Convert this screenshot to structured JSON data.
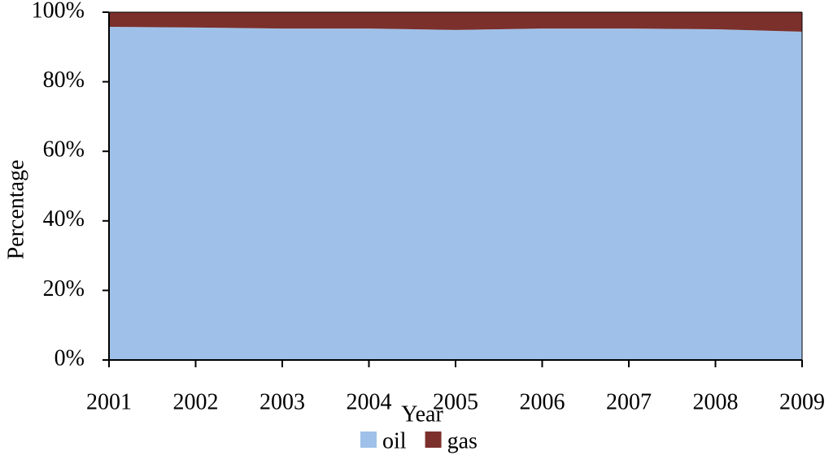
{
  "chart_data": {
    "type": "stacked-area",
    "categories": [
      "2001",
      "2002",
      "2003",
      "2004",
      "2005",
      "2006",
      "2007",
      "2008",
      "2009"
    ],
    "series": [
      {
        "name": "oil",
        "color": "#9fc1e9",
        "values": [
          95.8,
          95.6,
          95.3,
          95.3,
          94.9,
          95.3,
          95.3,
          95.1,
          94.4
        ]
      },
      {
        "name": "gas",
        "color": "#7b302c",
        "values": [
          4.2,
          4.4,
          4.7,
          4.7,
          5.1,
          4.7,
          4.7,
          4.9,
          5.6
        ]
      }
    ],
    "ylim": [
      0,
      100
    ],
    "yticks": [
      {
        "value": 0,
        "label": "0%"
      },
      {
        "value": 20,
        "label": "20%"
      },
      {
        "value": 40,
        "label": "40%"
      },
      {
        "value": 60,
        "label": "60%"
      },
      {
        "value": 80,
        "label": "80%"
      },
      {
        "value": 100,
        "label": "100%"
      }
    ],
    "x_label": "Year",
    "y_label": "Percentage",
    "legend": "bottom"
  }
}
